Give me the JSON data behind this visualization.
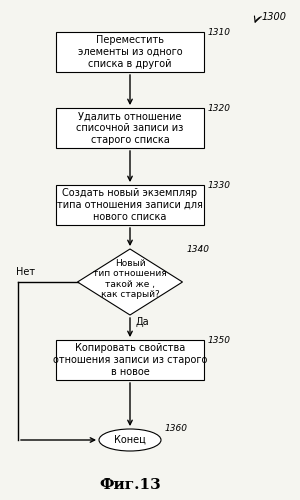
{
  "title": "Фиг.13",
  "background_color": "#f5f5f0",
  "label_1300": "1300",
  "label_1310": "1310",
  "label_1320": "1320",
  "label_1330": "1330",
  "label_1340": "1340",
  "label_1350": "1350",
  "label_1360": "1360",
  "box1_text": "Переместить\nэлементы из одного\nсписка в другой",
  "box2_text": "Удалить отношение\nсписочной записи из\nстарого списка",
  "box3_text": "Создать новый экземпляр\nтипа отношения записи для\nнового списка",
  "diamond_text": "Новый\nтип отношения\nтакой же ,\nкак старый?",
  "box5_text": "Копировать свойства\nотношения записи из старого\nв новое",
  "end_text": "Конец",
  "no_label": "Нет",
  "yes_label": "Да",
  "box_facecolor": "#ffffff",
  "box_edgecolor": "#000000",
  "arrow_color": "#000000",
  "text_color": "#000000",
  "font_size": 7.0,
  "label_font_size": 6.5,
  "title_font_size": 11
}
